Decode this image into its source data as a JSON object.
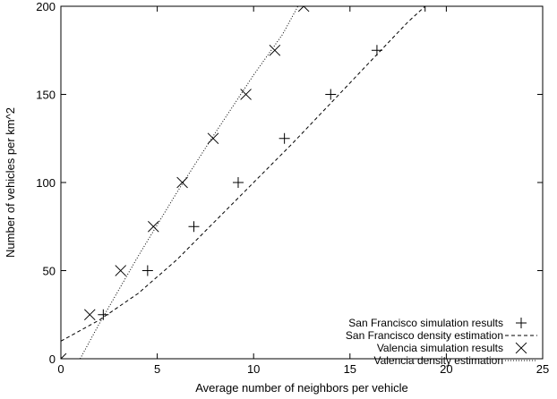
{
  "chart_data": {
    "type": "scatter",
    "xlabel": "Average number of neighbors per vehicle",
    "ylabel": "Number of vehicles per km^2",
    "xlim": [
      0,
      25
    ],
    "ylim": [
      0,
      200
    ],
    "xticks": [
      0,
      5,
      10,
      15,
      20,
      25
    ],
    "yticks": [
      0,
      50,
      100,
      150,
      200
    ],
    "grid": false,
    "legend_position": "bottom-right",
    "series": [
      {
        "name": "San Francisco simulation results",
        "kind": "points",
        "marker": "plus",
        "x": [
          0,
          2.2,
          4.5,
          6.9,
          9.2,
          11.6,
          14.0,
          16.4,
          18.9
        ],
        "y": [
          0,
          25,
          50,
          75,
          100,
          125,
          150,
          175,
          200
        ]
      },
      {
        "name": "San Francisco density estimation",
        "kind": "line",
        "style": "dashed",
        "x": [
          0,
          2,
          4,
          6,
          8,
          10,
          12,
          14,
          16,
          18,
          18.9
        ],
        "y": [
          10,
          22,
          37,
          56,
          78,
          100,
          122,
          145,
          168,
          191,
          200
        ]
      },
      {
        "name": "Valencia simulation results",
        "kind": "points",
        "marker": "cross",
        "x": [
          0,
          1.5,
          3.1,
          4.8,
          6.3,
          7.9,
          9.6,
          11.1,
          12.6
        ],
        "y": [
          0,
          25,
          50,
          75,
          100,
          125,
          150,
          175,
          200
        ]
      },
      {
        "name": "Valencia density estimation",
        "kind": "line",
        "style": "dotted",
        "x": [
          1,
          2,
          4,
          6,
          8,
          10,
          11.5,
          12.3
        ],
        "y": [
          0,
          20,
          58,
          94,
          128,
          161,
          184,
          200
        ]
      }
    ]
  }
}
